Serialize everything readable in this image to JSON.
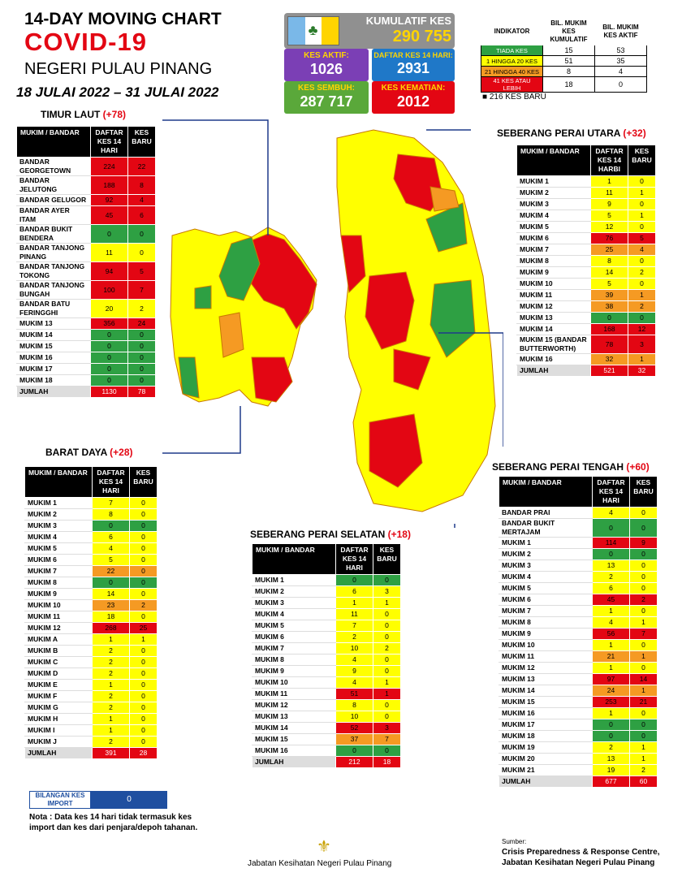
{
  "header": {
    "line1": "14-DAY MOVING CHART",
    "line2": "COVID-19",
    "line3": "NEGERI PULAU PINANG",
    "dates": "18 JULAI 2022 – 31 JULAI 2022"
  },
  "kumulatif": {
    "label": "KUMULATIF KES",
    "value": "290 755"
  },
  "stats": {
    "aktif_l": "KES AKTIF:",
    "aktif_v": "1026",
    "d14_l": "DAFTAR KES 14 HARI:",
    "d14_v": "2931",
    "sembuh_l": "KES SEMBUH:",
    "sembuh_v": "287 717",
    "mati_l": "KES KEMATIAN:",
    "mati_v": "2012"
  },
  "indicator": {
    "h1": "INDIKATOR",
    "h2": "BIL. MUKIM KES KUMULATIF",
    "h3": "BIL. MUKIM KES AKTIF",
    "rows": [
      {
        "k": "TIADA KES",
        "a": "15",
        "b": "53",
        "c": "#2ea043",
        "fc": "#fff"
      },
      {
        "k": "1 HINGGA 20 KES",
        "a": "51",
        "b": "35",
        "c": "#ffff00",
        "fc": "#000"
      },
      {
        "k": "21 HINGGA 40 KES",
        "a": "8",
        "b": "4",
        "c": "#f59a23",
        "fc": "#000"
      },
      {
        "k": "41 KES ATAU LEBIH",
        "a": "18",
        "b": "0",
        "c": "#e30613",
        "fc": "#fff"
      }
    ]
  },
  "kes_baru": "■ 216 KES BARU",
  "colors": {
    "green": "#2ea043",
    "yellow": "#ffff00",
    "orange": "#f59a23",
    "red": "#e30613"
  },
  "sections": {
    "timur": {
      "name": "TIMUR LAUT",
      "plus": "(+78)",
      "h1": "MUKIM / BANDAR",
      "h2": "DAFTAR KES 14 HARI",
      "h3": "KES BARU",
      "rows": [
        [
          "BANDAR GEORGETOWN",
          "224",
          "22",
          "r"
        ],
        [
          "BANDAR JELUTONG",
          "188",
          "8",
          "r"
        ],
        [
          "BANDAR GELUGOR",
          "92",
          "4",
          "r"
        ],
        [
          "BANDAR AYER ITAM",
          "45",
          "6",
          "r"
        ],
        [
          "BANDAR BUKIT BENDERA",
          "0",
          "0",
          "g"
        ],
        [
          "BANDAR TANJONG PINANG",
          "11",
          "0",
          "y"
        ],
        [
          "BANDAR TANJONG TOKONG",
          "94",
          "5",
          "r"
        ],
        [
          "BANDAR TANJONG BUNGAH",
          "100",
          "7",
          "r"
        ],
        [
          "BANDAR BATU FERINGGHI",
          "20",
          "2",
          "y"
        ],
        [
          "MUKIM 13",
          "356",
          "24",
          "r"
        ],
        [
          "MUKIM 14",
          "0",
          "0",
          "g"
        ],
        [
          "MUKIM 15",
          "0",
          "0",
          "g"
        ],
        [
          "MUKIM 16",
          "0",
          "0",
          "g"
        ],
        [
          "MUKIM 17",
          "0",
          "0",
          "g"
        ],
        [
          "MUKIM 18",
          "0",
          "0",
          "g"
        ]
      ],
      "total": [
        "JUMLAH",
        "1130",
        "78"
      ]
    },
    "barat": {
      "name": "BARAT DAYA",
      "plus": "(+28)",
      "h1": "MUKIM / BANDAR",
      "h2": "DAFTAR KES 14 HARI",
      "h3": "KES BARU",
      "rows": [
        [
          "MUKIM 1",
          "7",
          "0",
          "y"
        ],
        [
          "MUKIM 2",
          "8",
          "0",
          "y"
        ],
        [
          "MUKIM 3",
          "0",
          "0",
          "g"
        ],
        [
          "MUKIM 4",
          "6",
          "0",
          "y"
        ],
        [
          "MUKIM 5",
          "4",
          "0",
          "y"
        ],
        [
          "MUKIM 6",
          "5",
          "0",
          "y"
        ],
        [
          "MUKIM 7",
          "22",
          "0",
          "o"
        ],
        [
          "MUKIM 8",
          "0",
          "0",
          "g"
        ],
        [
          "MUKIM 9",
          "14",
          "0",
          "y"
        ],
        [
          "MUKIM 10",
          "23",
          "2",
          "o"
        ],
        [
          "MUKIM 11",
          "18",
          "0",
          "y"
        ],
        [
          "MUKIM 12",
          "268",
          "25",
          "r"
        ],
        [
          "MUKIM A",
          "1",
          "1",
          "y"
        ],
        [
          "MUKIM B",
          "2",
          "0",
          "y"
        ],
        [
          "MUKIM C",
          "2",
          "0",
          "y"
        ],
        [
          "MUKIM D",
          "2",
          "0",
          "y"
        ],
        [
          "MUKIM E",
          "1",
          "0",
          "y"
        ],
        [
          "MUKIM F",
          "2",
          "0",
          "y"
        ],
        [
          "MUKIM G",
          "2",
          "0",
          "y"
        ],
        [
          "MUKIM H",
          "1",
          "0",
          "y"
        ],
        [
          "MUKIM I",
          "1",
          "0",
          "y"
        ],
        [
          "MUKIM J",
          "2",
          "0",
          "y"
        ]
      ],
      "total": [
        "JUMLAH",
        "391",
        "28"
      ]
    },
    "spu": {
      "name": "SEBERANG PERAI UTARA",
      "plus": "(+32)",
      "h1": "MUKIM / BANDAR",
      "h2": "DAFTAR KES 14 HARBI",
      "h3": "KES BARU",
      "rows": [
        [
          "MUKIM 1",
          "1",
          "0",
          "y"
        ],
        [
          "MUKIM 2",
          "11",
          "1",
          "y"
        ],
        [
          "MUKIM 3",
          "9",
          "0",
          "y"
        ],
        [
          "MUKIM 4",
          "5",
          "1",
          "y"
        ],
        [
          "MUKIM 5",
          "12",
          "0",
          "y"
        ],
        [
          "MUKIM 6",
          "76",
          "5",
          "r"
        ],
        [
          "MUKIM 7",
          "25",
          "4",
          "o"
        ],
        [
          "MUKIM 8",
          "8",
          "0",
          "y"
        ],
        [
          "MUKIM 9",
          "14",
          "2",
          "y"
        ],
        [
          "MUKIM 10",
          "5",
          "0",
          "y"
        ],
        [
          "MUKIM 11",
          "39",
          "1",
          "o"
        ],
        [
          "MUKIM 12",
          "38",
          "2",
          "o"
        ],
        [
          "MUKIM 13",
          "0",
          "0",
          "g"
        ],
        [
          "MUKIM 14",
          "168",
          "12",
          "r"
        ],
        [
          "MUKIM 15 (BANDAR BUTTERWORTH)",
          "78",
          "3",
          "r"
        ],
        [
          "MUKIM 16",
          "32",
          "1",
          "o"
        ]
      ],
      "total": [
        "JUMLAH",
        "521",
        "32"
      ]
    },
    "sps": {
      "name": "SEBERANG PERAI SELATAN",
      "plus": "(+18)",
      "h1": "MUKIM / BANDAR",
      "h2": "DAFTAR KES 14 HARI",
      "h3": "KES BARU",
      "rows": [
        [
          "MUKIM 1",
          "0",
          "0",
          "g"
        ],
        [
          "MUKIM 2",
          "6",
          "3",
          "y"
        ],
        [
          "MUKIM 3",
          "1",
          "1",
          "y"
        ],
        [
          "MUKIM 4",
          "11",
          "0",
          "y"
        ],
        [
          "MUKIM 5",
          "7",
          "0",
          "y"
        ],
        [
          "MUKIM 6",
          "2",
          "0",
          "y"
        ],
        [
          "MUKIM 7",
          "10",
          "2",
          "y"
        ],
        [
          "MUKIM 8",
          "4",
          "0",
          "y"
        ],
        [
          "MUKIM 9",
          "9",
          "0",
          "y"
        ],
        [
          "MUKIM 10",
          "4",
          "1",
          "y"
        ],
        [
          "MUKIM 11",
          "51",
          "1",
          "r"
        ],
        [
          "MUKIM 12",
          "8",
          "0",
          "y"
        ],
        [
          "MUKIM 13",
          "10",
          "0",
          "y"
        ],
        [
          "MUKIM 14",
          "52",
          "3",
          "r"
        ],
        [
          "MUKIM 15",
          "37",
          "7",
          "o"
        ],
        [
          "MUKIM 16",
          "0",
          "0",
          "g"
        ]
      ],
      "total": [
        "JUMLAH",
        "212",
        "18"
      ]
    },
    "spt": {
      "name": "SEBERANG PERAI TENGAH",
      "plus": "(+60)",
      "h1": "MUKIM / BANDAR",
      "h2": "DAFTAR KES 14 HARI",
      "h3": "KES BARU",
      "rows": [
        [
          "BANDAR PRAI",
          "4",
          "0",
          "y"
        ],
        [
          "BANDAR BUKIT MERTAJAM",
          "0",
          "0",
          "g"
        ],
        [
          "MUKIM 1",
          "114",
          "9",
          "r"
        ],
        [
          "MUKIM 2",
          "0",
          "0",
          "g"
        ],
        [
          "MUKIM 3",
          "13",
          "0",
          "y"
        ],
        [
          "MUKIM 4",
          "2",
          "0",
          "y"
        ],
        [
          "MUKIM 5",
          "6",
          "0",
          "y"
        ],
        [
          "MUKIM 6",
          "45",
          "2",
          "r"
        ],
        [
          "MUKIM 7",
          "1",
          "0",
          "y"
        ],
        [
          "MUKIM 8",
          "4",
          "1",
          "y"
        ],
        [
          "MUKIM 9",
          "56",
          "7",
          "r"
        ],
        [
          "MUKIM 10",
          "1",
          "0",
          "y"
        ],
        [
          "MUKIM 11",
          "21",
          "1",
          "o"
        ],
        [
          "MUKIM 12",
          "1",
          "0",
          "y"
        ],
        [
          "MUKIM 13",
          "97",
          "14",
          "r"
        ],
        [
          "MUKIM 14",
          "24",
          "1",
          "o"
        ],
        [
          "MUKIM 15",
          "253",
          "21",
          "r"
        ],
        [
          "MUKIM 16",
          "1",
          "0",
          "y"
        ],
        [
          "MUKIM 17",
          "0",
          "0",
          "g"
        ],
        [
          "MUKIM 18",
          "0",
          "0",
          "g"
        ],
        [
          "MUKIM 19",
          "2",
          "1",
          "y"
        ],
        [
          "MUKIM 20",
          "13",
          "1",
          "y"
        ],
        [
          "MUKIM 21",
          "19",
          "2",
          "y"
        ]
      ],
      "total": [
        "JUMLAH",
        "677",
        "60"
      ]
    }
  },
  "import": {
    "label": "BILANGAN KES IMPORT",
    "value": "0"
  },
  "note": "Nota : Data kes 14 hari tidak termasuk kes import dan kes dari penjara/depoh tahanan.",
  "footer": "Jabatan Kesihatan Negeri Pulau Pinang",
  "source": {
    "l1": "Sumber:",
    "l2": "Crisis Preparedness & Response Centre,",
    "l3": "Jabatan Kesihatan Negeri Pulau Pinang"
  }
}
